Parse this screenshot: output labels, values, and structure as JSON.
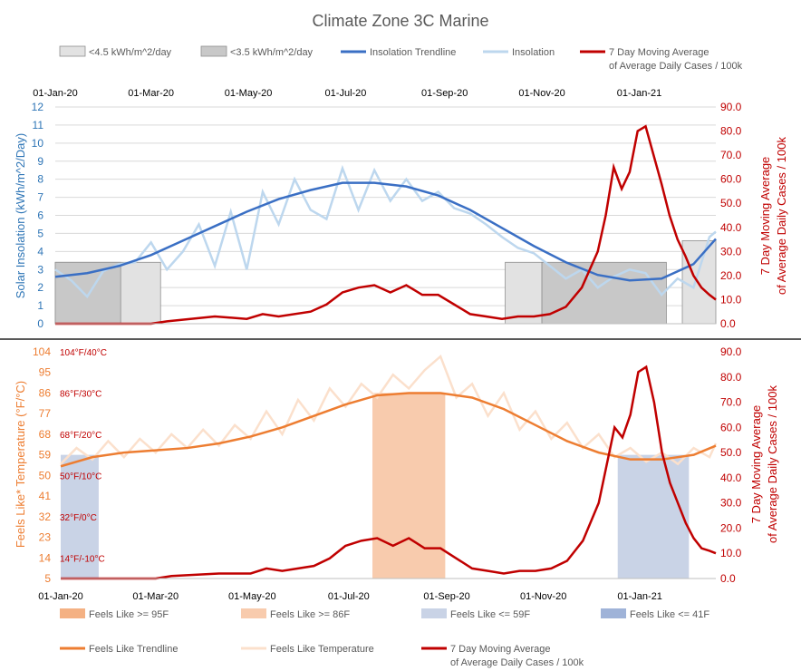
{
  "title": "Climate Zone 3C Marine",
  "colors": {
    "insolation_trend": "#3a6fc4",
    "insolation": "#bdd7ee",
    "cases": "#c00000",
    "band_45": "#e2e2e2",
    "band_35": "#c8c8c8",
    "feels_trend": "#ed7d31",
    "feels_raw": "#fbe0cc",
    "ge95": "#f4b183",
    "ge86": "#f8cbad",
    "le59": "#c9d3e6",
    "le41": "#9fb3d8",
    "axis_blue": "#2e75b6",
    "axis_orange": "#ed7d31",
    "axis_red": "#c00000"
  },
  "chart_data": [
    {
      "type": "line",
      "name": "insolation-chart",
      "x_tick_labels": [
        "01-Jan-20",
        "01-Mar-20",
        "01-May-20",
        "01-Jul-20",
        "01-Sep-20",
        "01-Nov-20",
        "01-Jan-21"
      ],
      "x_ticks_day": [
        0,
        60,
        121,
        182,
        244,
        305,
        366
      ],
      "x_range_days": [
        0,
        414
      ],
      "ylabel_left": "Solar Insolation (kWh/m^2/Day)",
      "ylabel_right_line1": "7 Day Moving Average",
      "ylabel_right_line2": "of Average Daily Cases / 100k",
      "ylim_left": [
        0,
        12
      ],
      "yticks_left": [
        "0",
        "1",
        "2",
        "3",
        "4",
        "5",
        "6",
        "7",
        "8",
        "9",
        "10",
        "11",
        "12"
      ],
      "ylim_right": [
        0,
        90
      ],
      "yticks_right": [
        "0.0",
        "10.0",
        "20.0",
        "30.0",
        "40.0",
        "50.0",
        "60.0",
        "70.0",
        "80.0",
        "90.0"
      ],
      "legend": [
        {
          "label": "<4.5 kWh/m^2/day",
          "kind": "swatch",
          "color_key": "band_45"
        },
        {
          "label": "<3.5 kWh/m^2/day",
          "kind": "swatch",
          "color_key": "band_35"
        },
        {
          "label": "Insolation Trendline",
          "kind": "line",
          "color_key": "insolation_trend"
        },
        {
          "label": "Insolation",
          "kind": "line",
          "color_key": "insolation"
        },
        {
          "label": "7 Day Moving Average",
          "label2": "of Average Daily Cases / 100k",
          "kind": "line",
          "color_key": "cases"
        }
      ],
      "bands_below_4_5": [
        {
          "start_day": 0,
          "end_day": 66,
          "level": 3.4
        },
        {
          "start_day": 282,
          "end_day": 305,
          "level": 3.4
        },
        {
          "start_day": 393,
          "end_day": 414,
          "level": 4.6
        }
      ],
      "bands_below_3_5": [
        {
          "start_day": 0,
          "end_day": 41,
          "level": 3.4
        },
        {
          "start_day": 305,
          "end_day": 383,
          "level": 3.4
        }
      ],
      "insolation_trend": {
        "x": [
          0,
          20,
          40,
          60,
          80,
          100,
          120,
          140,
          160,
          180,
          200,
          220,
          240,
          260,
          280,
          300,
          320,
          340,
          360,
          380,
          400,
          414
        ],
        "y": [
          2.6,
          2.8,
          3.2,
          3.8,
          4.6,
          5.4,
          6.2,
          6.9,
          7.4,
          7.8,
          7.8,
          7.6,
          7.1,
          6.3,
          5.3,
          4.3,
          3.4,
          2.7,
          2.4,
          2.5,
          3.3,
          4.7
        ]
      },
      "insolation": {
        "x": [
          0,
          10,
          20,
          30,
          40,
          50,
          60,
          70,
          80,
          90,
          100,
          110,
          120,
          130,
          140,
          150,
          160,
          170,
          180,
          190,
          200,
          210,
          220,
          230,
          240,
          250,
          260,
          270,
          280,
          290,
          300,
          310,
          320,
          330,
          340,
          350,
          360,
          370,
          380,
          390,
          400,
          410,
          414
        ],
        "y": [
          3.0,
          2.4,
          1.5,
          2.9,
          3.3,
          3.4,
          4.5,
          3.0,
          4.0,
          5.5,
          3.2,
          6.2,
          3.0,
          7.3,
          5.5,
          8.0,
          6.3,
          5.8,
          8.6,
          6.3,
          8.5,
          6.8,
          8.0,
          6.8,
          7.3,
          6.4,
          6.1,
          5.5,
          4.8,
          4.2,
          3.9,
          3.2,
          2.5,
          3.0,
          2.0,
          2.6,
          3.0,
          2.8,
          1.6,
          2.5,
          2.0,
          4.8,
          5.1
        ]
      },
      "cases": {
        "x": [
          0,
          30,
          60,
          70,
          100,
          120,
          130,
          140,
          160,
          170,
          180,
          190,
          200,
          210,
          220,
          225,
          230,
          240,
          250,
          260,
          270,
          280,
          290,
          300,
          310,
          320,
          330,
          340,
          345,
          350,
          355,
          360,
          365,
          370,
          375,
          380,
          385,
          390,
          395,
          400,
          405,
          410,
          414
        ],
        "y": [
          0,
          0,
          0,
          1,
          3,
          2,
          4,
          3,
          5,
          8,
          13,
          15,
          16,
          13,
          16,
          14,
          12,
          12,
          8,
          4,
          3,
          2,
          3,
          3,
          4,
          7,
          15,
          30,
          45,
          65,
          56,
          63,
          80,
          82,
          70,
          58,
          45,
          35,
          28,
          20,
          15,
          12,
          10
        ]
      }
    },
    {
      "type": "line",
      "name": "feels-like-chart",
      "x_tick_labels": [
        "01-Jan-20",
        "01-Mar-20",
        "01-May-20",
        "01-Jul-20",
        "01-Sep-20",
        "01-Nov-20",
        "01-Jan-21"
      ],
      "x_ticks_day": [
        0,
        60,
        121,
        182,
        244,
        305,
        366
      ],
      "x_range_days": [
        0,
        414
      ],
      "ylabel_left": "Feels Like* Temperature (°F/°C)",
      "ylabel_right_line1": "7 Day Moving Average",
      "ylabel_right_line2": "of Average Daily Cases / 100k",
      "ylim_left_f": [
        5,
        104
      ],
      "yticks_left": [
        "5",
        "14",
        "23",
        "32",
        "41",
        "50",
        "59",
        "68",
        "77",
        "86",
        "95",
        "104"
      ],
      "celsius_marks": [
        {
          "f": 104,
          "label": "104°F/40°C"
        },
        {
          "f": 86,
          "label": "86°F/30°C"
        },
        {
          "f": 68,
          "label": "68°F/20°C"
        },
        {
          "f": 50,
          "label": "50°F/10°C"
        },
        {
          "f": 32,
          "label": "32°F/0°C"
        },
        {
          "f": 14,
          "label": "14°F/-10°C"
        }
      ],
      "ylim_right": [
        0,
        90
      ],
      "yticks_right": [
        "0.0",
        "10.0",
        "20.0",
        "30.0",
        "40.0",
        "50.0",
        "60.0",
        "70.0",
        "80.0",
        "90.0"
      ],
      "legend": [
        {
          "label": "Feels Like >= 95F",
          "kind": "swatch",
          "color_key": "ge95"
        },
        {
          "label": "Feels Like >= 86F",
          "kind": "swatch",
          "color_key": "ge86"
        },
        {
          "label": "Feels Like <= 59F",
          "kind": "swatch",
          "color_key": "le59"
        },
        {
          "label": "Feels Like <= 41F",
          "kind": "swatch",
          "color_key": "le41"
        },
        {
          "label": "Feels Like Trendline",
          "kind": "line",
          "color_key": "feels_trend"
        },
        {
          "label": "Feels Like Temperature",
          "kind": "line",
          "color_key": "feels_raw"
        },
        {
          "label": "7 Day Moving Average",
          "label2": "of Average Daily Cases / 100k",
          "kind": "line",
          "color_key": "cases"
        }
      ],
      "bands_ge86": [
        {
          "start_day": 197,
          "end_day": 243,
          "level": 86
        }
      ],
      "bands_le59": [
        {
          "start_day": 0,
          "end_day": 24,
          "level": 59
        },
        {
          "start_day": 352,
          "end_day": 397,
          "level": 59
        }
      ],
      "feels_trend": {
        "x": [
          0,
          20,
          40,
          60,
          80,
          100,
          120,
          140,
          160,
          180,
          200,
          220,
          240,
          260,
          280,
          300,
          320,
          340,
          360,
          380,
          400,
          414
        ],
        "y": [
          54,
          58,
          60,
          61,
          62,
          64,
          67,
          71,
          76,
          81,
          85,
          86,
          86,
          84,
          79,
          72,
          65,
          60,
          57,
          57,
          59,
          63
        ]
      },
      "feels_temperature": {
        "x": [
          0,
          10,
          20,
          30,
          40,
          50,
          60,
          70,
          80,
          90,
          100,
          110,
          120,
          130,
          140,
          150,
          160,
          170,
          180,
          190,
          200,
          210,
          220,
          230,
          240,
          250,
          260,
          270,
          280,
          290,
          300,
          310,
          320,
          330,
          340,
          350,
          360,
          370,
          380,
          390,
          400,
          410,
          414
        ],
        "y": [
          55,
          62,
          57,
          65,
          58,
          66,
          60,
          68,
          62,
          70,
          63,
          72,
          66,
          78,
          68,
          83,
          74,
          88,
          80,
          90,
          84,
          94,
          88,
          96,
          102,
          84,
          90,
          76,
          86,
          70,
          78,
          66,
          73,
          62,
          68,
          58,
          62,
          56,
          60,
          55,
          62,
          58,
          64
        ]
      },
      "cases": {
        "x": [
          0,
          30,
          60,
          70,
          100,
          120,
          130,
          140,
          160,
          170,
          180,
          190,
          200,
          210,
          220,
          225,
          230,
          240,
          250,
          260,
          270,
          280,
          290,
          300,
          310,
          320,
          330,
          340,
          345,
          350,
          355,
          360,
          365,
          370,
          375,
          380,
          385,
          390,
          395,
          400,
          405,
          410,
          414
        ],
        "y": [
          0,
          0,
          0,
          1,
          2,
          2,
          4,
          3,
          5,
          8,
          13,
          15,
          16,
          13,
          16,
          14,
          12,
          12,
          8,
          4,
          3,
          2,
          3,
          3,
          4,
          7,
          15,
          30,
          45,
          60,
          56,
          65,
          82,
          84,
          70,
          50,
          38,
          30,
          22,
          16,
          12,
          11,
          10
        ]
      }
    }
  ]
}
